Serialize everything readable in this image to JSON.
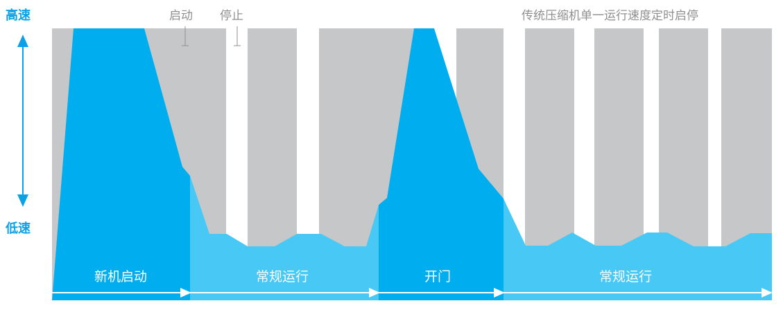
{
  "axis": {
    "high_label": "高速",
    "low_label": "低速"
  },
  "top_labels": {
    "start": "启动",
    "stop": "停止",
    "legend": "传统压缩机单一运行速度定时启停"
  },
  "phases": [
    {
      "label": "新机启动"
    },
    {
      "label": "常规运行"
    },
    {
      "label": "开门"
    },
    {
      "label": "常规运行"
    }
  ],
  "colors": {
    "gray_bar": "#c6c7c9",
    "dark_blue": "#00aeef",
    "light_blue": "#47c8f5",
    "axis_blue": "#0aa1e8",
    "label_gray": "#8f8f8f"
  }
}
